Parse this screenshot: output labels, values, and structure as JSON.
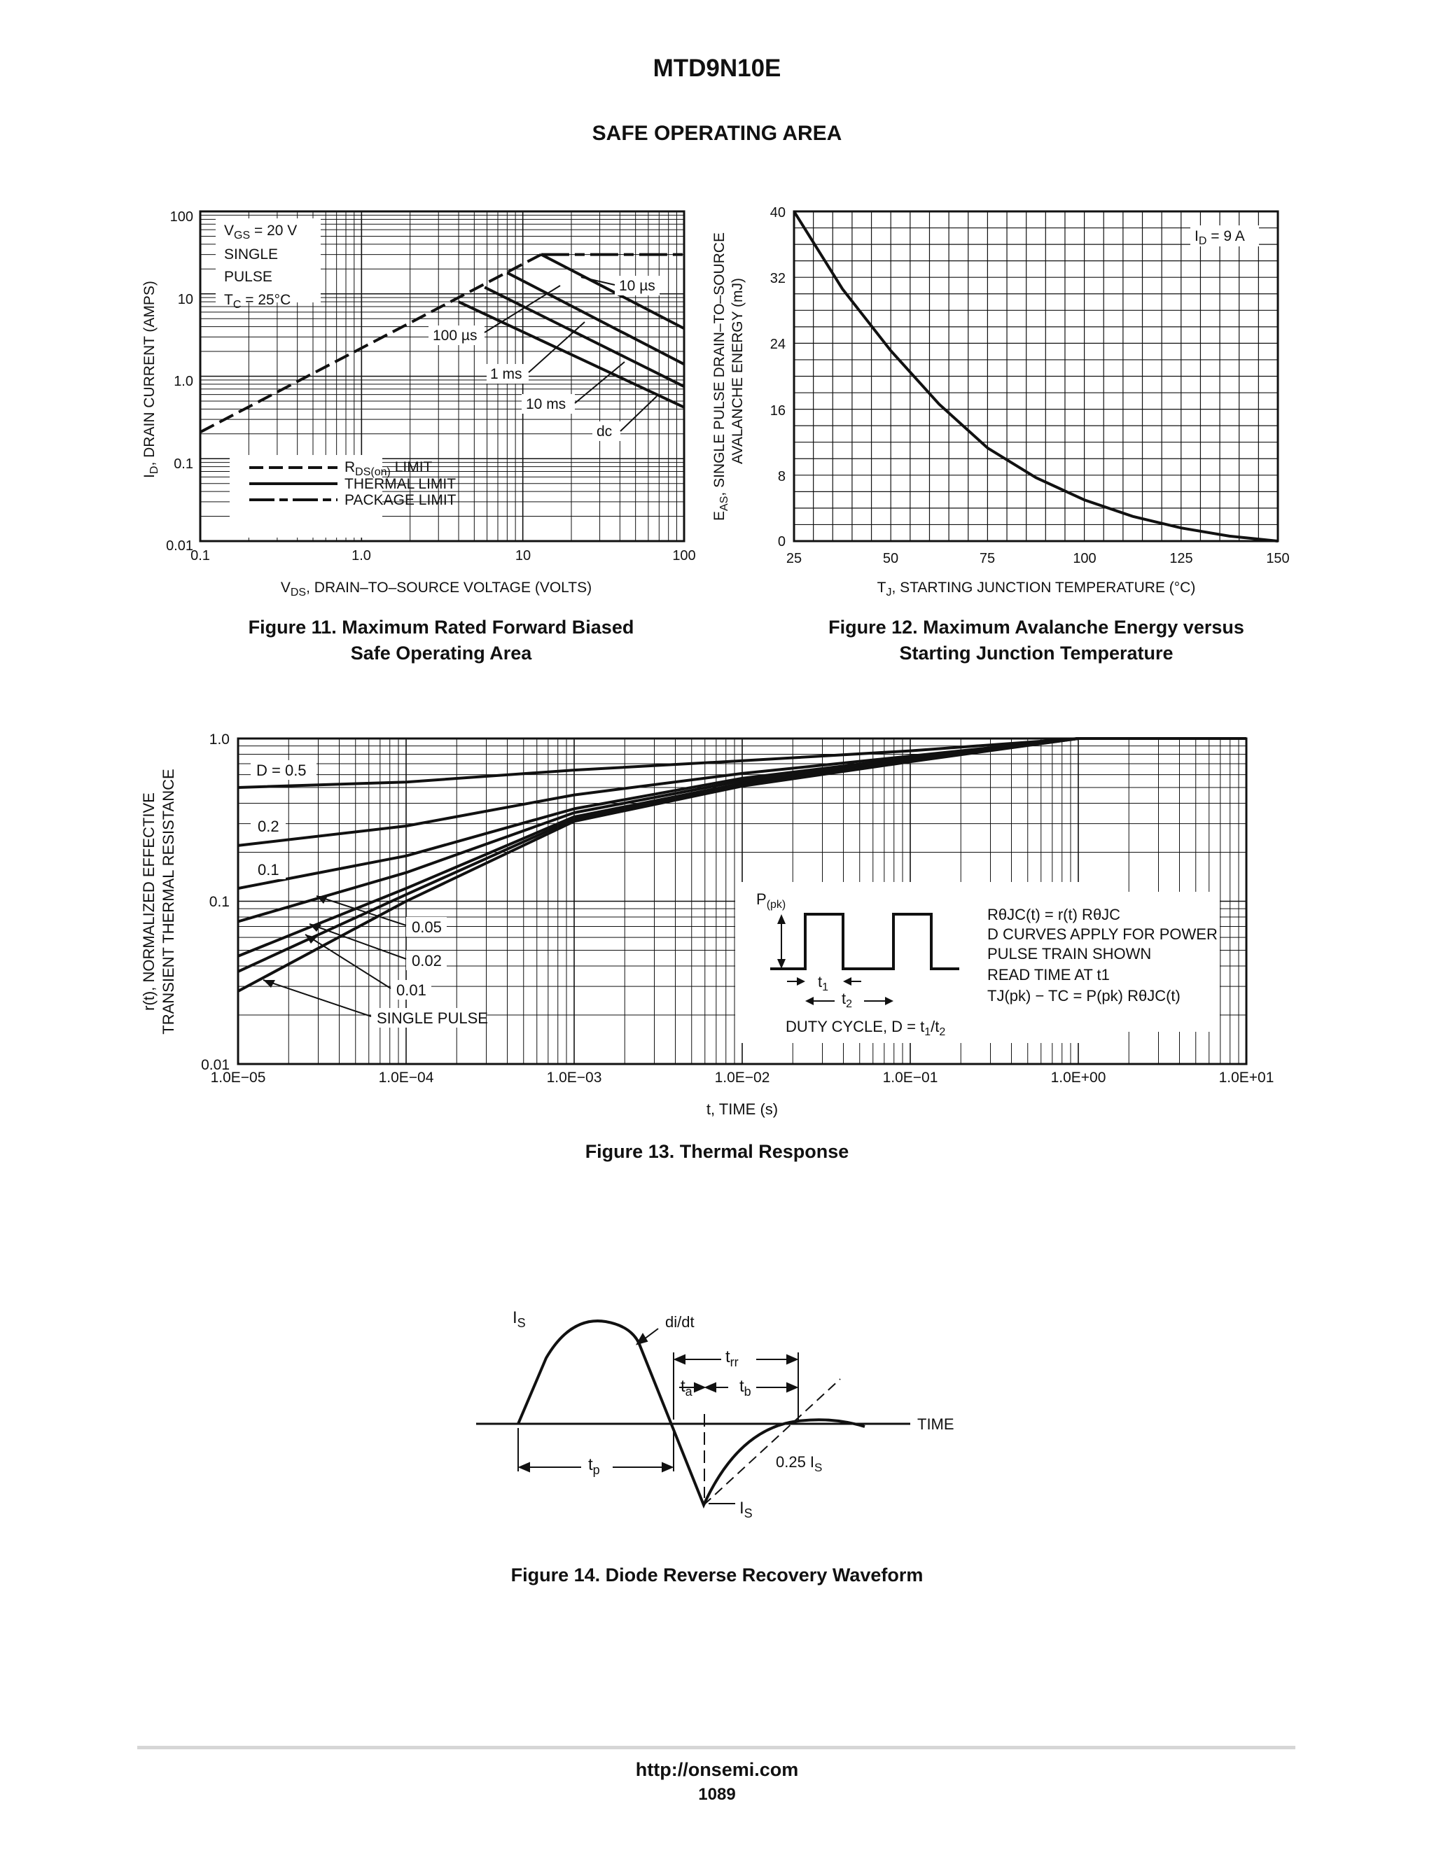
{
  "header": {
    "title": "MTD9N10E",
    "section": "SAFE OPERATING AREA"
  },
  "fig11": {
    "caption_line1": "Figure 11. Maximum Rated Forward Biased",
    "caption_line2": "Safe Operating Area",
    "ylabel": "ID, DRAIN CURRENT (AMPS)",
    "ylabel_main": "I",
    "ylabel_sub": "D",
    "ylabel_rest": ", DRAIN CURRENT (AMPS)",
    "xlabel_main": "V",
    "xlabel_sub": "DS",
    "xlabel_rest": ", DRAIN–TO–SOURCE VOLTAGE (VOLTS)",
    "y_ticks": [
      "100",
      "10",
      "1.0",
      "0.1",
      "0.01"
    ],
    "x_ticks": [
      "0.1",
      "1.0",
      "10",
      "100"
    ],
    "cond": [
      "V",
      "GS",
      " = 20 V",
      "SINGLE",
      "PULSE",
      "T",
      "C",
      " = 25°C"
    ],
    "labels": {
      "us10": "10 µs",
      "us100": "100 µs",
      "ms1": "1 ms",
      "ms10": "10 ms",
      "dc": "dc"
    },
    "legend": {
      "rds_main": "R",
      "rds_sub": "DS(on)",
      "rds_rest": " LIMIT",
      "thermal": "THERMAL LIMIT",
      "package": "PACKAGE LIMIT"
    }
  },
  "fig12": {
    "caption_line1": "Figure 12. Maximum Avalanche Energy versus",
    "caption_line2": "Starting Junction Temperature",
    "ylabel1_main": "E",
    "ylabel1_sub": "AS",
    "ylabel1_rest": ", SINGLE PULSE DRAIN–TO–SOURCE",
    "ylabel2": "AVALANCHE ENERGY (mJ)",
    "xlabel_main": "T",
    "xlabel_sub": "J",
    "xlabel_rest": ", STARTING JUNCTION TEMPERATURE (°C)",
    "y_ticks": [
      "40",
      "32",
      "24",
      "16",
      "8",
      "0"
    ],
    "x_ticks": [
      "25",
      "50",
      "75",
      "100",
      "125",
      "150"
    ],
    "annot_main": "I",
    "annot_sub": "D",
    "annot_rest": " = 9 A"
  },
  "fig13": {
    "caption": "Figure 13. Thermal Response",
    "ylabel1": "r(t), NORMALIZED EFFECTIVE",
    "ylabel2": "TRANSIENT THERMAL RESISTANCE",
    "xlabel": "t, TIME (s)",
    "y_ticks": [
      "1.0",
      "0.1",
      "0.01"
    ],
    "x_ticks": [
      "1.0E−05",
      "1.0E−04",
      "1.0E−03",
      "1.0E−02",
      "1.0E−01",
      "1.0E+00",
      "1.0E+01"
    ],
    "curve_labels": [
      "D = 0.5",
      "0.2",
      "0.1",
      "0.05",
      "0.02",
      "0.01",
      "SINGLE PULSE"
    ],
    "ppk_main": "P",
    "ppk_sub": "(pk)",
    "t1_main": "t",
    "t1_sub": "1",
    "t2_main": "t",
    "t2_sub": "2",
    "duty": "DUTY CYCLE, D = t",
    "duty_sub1": "1",
    "duty_mid": "/t",
    "duty_sub2": "2",
    "notes": [
      "RθJC(t) = r(t) RθJC",
      "D CURVES APPLY FOR POWER",
      "PULSE TRAIN SHOWN",
      "READ TIME AT t1",
      "TJ(pk) − TC = P(pk) RθJC(t)"
    ]
  },
  "fig14": {
    "caption": "Figure 14. Diode Reverse Recovery Waveform",
    "didt": "di/dt",
    "is_main": "I",
    "is_sub": "S",
    "trr_main": "t",
    "trr_sub": "rr",
    "ta_main": "t",
    "ta_sub": "a",
    "tb_main": "t",
    "tb_sub": "b",
    "tp_main": "t",
    "tp_sub": "p",
    "time": "TIME",
    "quarter": "0.25 I",
    "quarter_sub": "S"
  },
  "footer": {
    "url": "http://onsemi.com",
    "page": "1089"
  },
  "chart_data": [
    {
      "type": "line",
      "title": "Figure 11. Maximum Rated Forward Biased Safe Operating Area",
      "xlabel": "VDS, DRAIN–TO–SOURCE VOLTAGE (VOLTS)",
      "ylabel": "ID, DRAIN CURRENT (AMPS)",
      "xscale": "log",
      "yscale": "log",
      "xlim": [
        0.1,
        100
      ],
      "ylim": [
        0.01,
        100
      ],
      "series": [
        {
          "name": "RDS(on) LIMIT",
          "x": [
            0.1,
            13
          ],
          "y": [
            0.21,
            30
          ]
        },
        {
          "name": "PACKAGE LIMIT",
          "x": [
            13,
            100
          ],
          "y": [
            30,
            30
          ]
        },
        {
          "name": "10 µs",
          "x": [
            13,
            100
          ],
          "y": [
            30,
            3.8
          ]
        },
        {
          "name": "100 µs",
          "x": [
            8,
            100
          ],
          "y": [
            18,
            1.4
          ]
        },
        {
          "name": "1 ms",
          "x": [
            5.8,
            100
          ],
          "y": [
            12,
            0.75
          ]
        },
        {
          "name": "10 ms",
          "x": [
            4,
            100
          ],
          "y": [
            8,
            0.42
          ]
        }
      ],
      "grid": true
    },
    {
      "type": "line",
      "title": "Figure 12. Maximum Avalanche Energy versus Starting Junction Temperature",
      "xlabel": "TJ, STARTING JUNCTION TEMPERATURE (°C)",
      "ylabel": "EAS, SINGLE PULSE DRAIN–TO–SOURCE AVALANCHE ENERGY (mJ)",
      "xlim": [
        25,
        150
      ],
      "ylim": [
        0,
        40
      ],
      "series": [
        {
          "name": "ID = 9 A",
          "x": [
            25,
            37.5,
            50,
            62.5,
            75,
            87.5,
            100,
            112.5,
            125,
            137.5,
            150
          ],
          "y": [
            40,
            30.6,
            23.1,
            16.6,
            11.3,
            7.7,
            5.0,
            3.0,
            1.6,
            0.6,
            0
          ]
        }
      ],
      "grid": true
    },
    {
      "type": "line",
      "title": "Figure 13. Thermal Response",
      "xlabel": "t, TIME (s)",
      "ylabel": "r(t), NORMALIZED EFFECTIVE TRANSIENT THERMAL RESISTANCE",
      "xscale": "log",
      "yscale": "log",
      "xlim": [
        1e-05,
        10
      ],
      "ylim": [
        0.01,
        1.0
      ],
      "x": [
        1e-05,
        0.0001,
        0.001,
        0.01,
        0.1,
        1,
        10
      ],
      "series": [
        {
          "name": "D = 0.5",
          "values": [
            0.5,
            0.54,
            0.64,
            0.73,
            0.84,
            1.0,
            1.0
          ]
        },
        {
          "name": "0.2",
          "values": [
            0.22,
            0.29,
            0.45,
            0.61,
            0.78,
            1.0,
            1.0
          ]
        },
        {
          "name": "0.1",
          "values": [
            0.12,
            0.19,
            0.37,
            0.57,
            0.76,
            1.0,
            1.0
          ]
        },
        {
          "name": "0.05",
          "values": [
            0.075,
            0.15,
            0.35,
            0.55,
            0.75,
            1.0,
            1.0
          ]
        },
        {
          "name": "0.02",
          "values": [
            0.046,
            0.12,
            0.33,
            0.53,
            0.74,
            1.0,
            1.0
          ]
        },
        {
          "name": "0.01",
          "values": [
            0.037,
            0.11,
            0.32,
            0.52,
            0.73,
            1.0,
            1.0
          ]
        },
        {
          "name": "SINGLE PULSE",
          "values": [
            0.028,
            0.1,
            0.31,
            0.51,
            0.72,
            1.0,
            1.0
          ]
        }
      ],
      "grid": true
    }
  ]
}
